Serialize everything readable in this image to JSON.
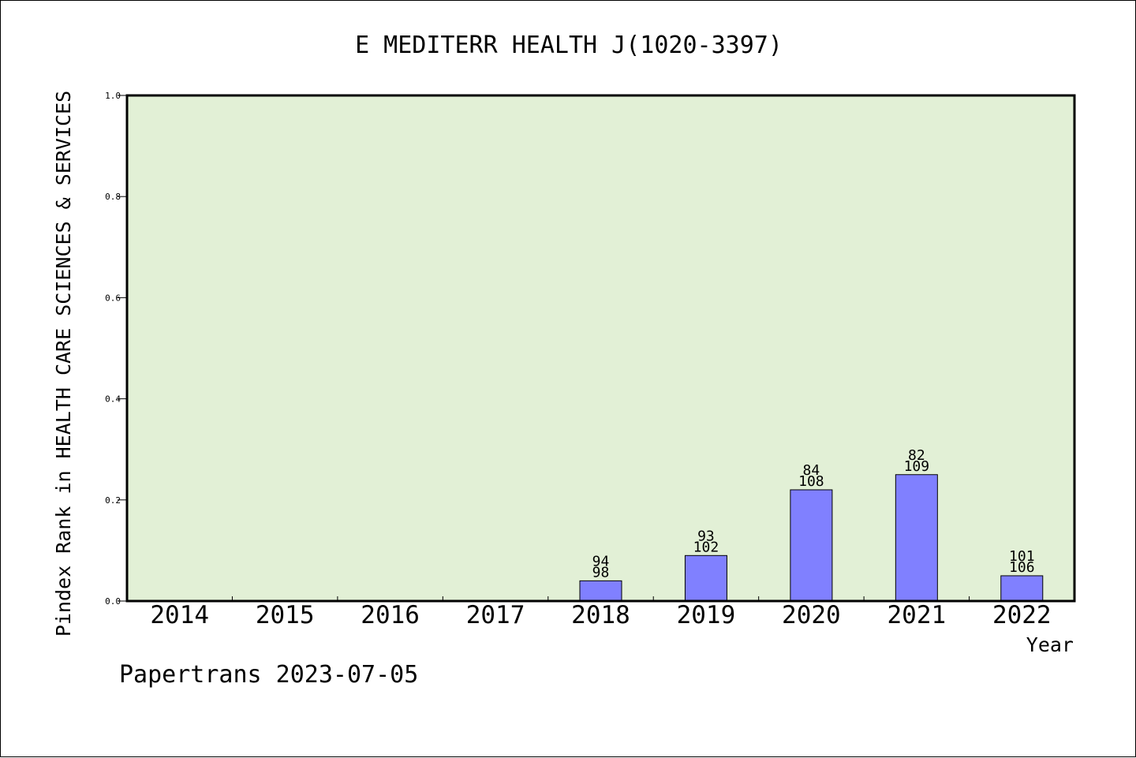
{
  "chart_data": {
    "type": "bar",
    "title": "E MEDITERR HEALTH J(1020-3397)",
    "xlabel": "Year",
    "ylabel": "Pindex Rank in HEALTH CARE SCIENCES & SERVICES",
    "ylim": [
      0,
      1.0
    ],
    "yticks": [
      "0.0",
      "0.2",
      "0.4",
      "0.6",
      "0.8",
      "1.0"
    ],
    "categories": [
      "2014",
      "2015",
      "2016",
      "2017",
      "2018",
      "2019",
      "2020",
      "2021",
      "2022"
    ],
    "values": [
      null,
      null,
      null,
      null,
      0.04,
      0.09,
      0.22,
      0.25,
      0.05
    ],
    "label_top": [
      "",
      "",
      "",
      "",
      "94",
      "93",
      "84",
      "82",
      "101"
    ],
    "label_bottom": [
      "",
      "",
      "",
      "",
      "98",
      "102",
      "108",
      "109",
      "106"
    ],
    "grid": false,
    "colors": {
      "plot_bg": "#e2f0d6",
      "bar": "#8080ff",
      "axis": "#000000"
    }
  },
  "footer": {
    "credit": "Papertrans 2023-07-05"
  }
}
